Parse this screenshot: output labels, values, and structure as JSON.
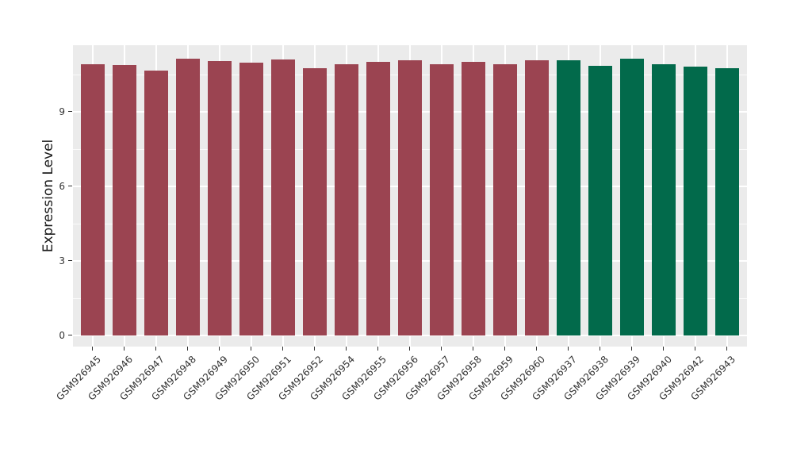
{
  "figure": {
    "background": "#FFFFFF",
    "panel_background": "#EBEBEB",
    "gridline_color": "#FFFFFF",
    "axis_text_color": "#333333",
    "axis_title_color": "#1A1A1A"
  },
  "chart_data": {
    "type": "bar",
    "title": "",
    "xlabel": "",
    "ylabel": "Expression Level",
    "categories": [
      "GSM926945",
      "GSM926946",
      "GSM926947",
      "GSM926948",
      "GSM926949",
      "GSM926950",
      "GSM926951",
      "GSM926952",
      "GSM926954",
      "GSM926955",
      "GSM926956",
      "GSM926957",
      "GSM926958",
      "GSM926959",
      "GSM926960",
      "GSM926937",
      "GSM926938",
      "GSM926939",
      "GSM926940",
      "GSM926942",
      "GSM926943"
    ],
    "values": [
      10.89,
      10.88,
      10.65,
      11.14,
      11.04,
      10.97,
      11.11,
      10.75,
      10.9,
      11.0,
      11.08,
      10.89,
      10.99,
      10.92,
      11.05,
      11.05,
      10.84,
      11.13,
      10.89,
      10.82,
      10.76
    ],
    "bar_colors": [
      "#9B4451",
      "#9B4451",
      "#9B4451",
      "#9B4451",
      "#9B4451",
      "#9B4451",
      "#9B4451",
      "#9B4451",
      "#9B4451",
      "#9B4451",
      "#9B4451",
      "#9B4451",
      "#9B4451",
      "#9B4451",
      "#9B4451",
      "#026A4B",
      "#026A4B",
      "#026A4B",
      "#026A4B",
      "#026A4B",
      "#026A4B"
    ],
    "group_colors": {
      "left_group": "#9B4451",
      "right_group": "#026A4B"
    },
    "yticks": [
      0,
      3,
      6,
      9
    ],
    "minor_yticks": [
      1.5,
      4.5,
      7.5,
      10.5
    ],
    "ylim": [
      0,
      11.68
    ],
    "grid": "on",
    "legend_position": "none"
  }
}
